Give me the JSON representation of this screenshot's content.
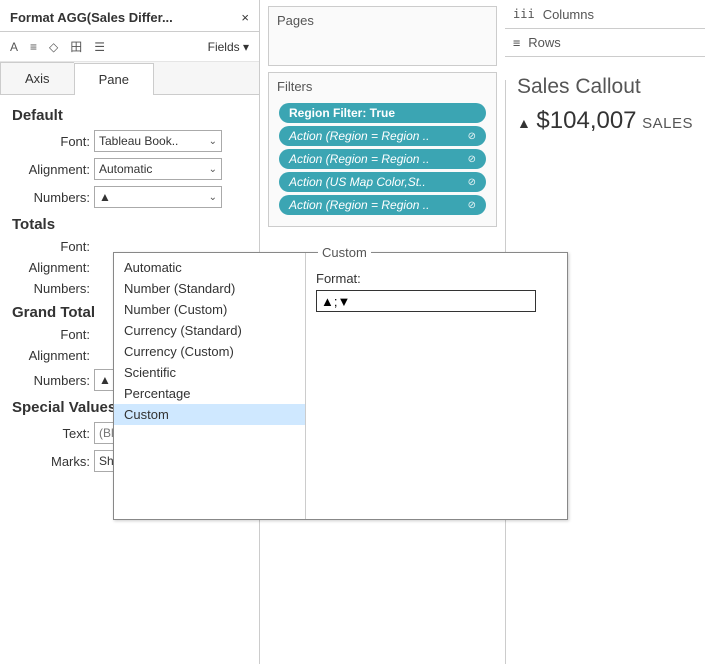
{
  "panel": {
    "title": "Format AGG(Sales Differ...",
    "fields_label": "Fields",
    "tabs": {
      "axis": "Axis",
      "pane": "Pane"
    }
  },
  "sections": {
    "default": {
      "title": "Default",
      "font_label": "Font:",
      "font_value": "Tableau Book..",
      "align_label": "Alignment:",
      "align_value": "Automatic",
      "numbers_label": "Numbers:",
      "numbers_value": "▲"
    },
    "totals": {
      "title": "Totals",
      "font_label": "Font:",
      "align_label": "Alignment:",
      "numbers_label": "Numbers:"
    },
    "grand": {
      "title": "Grand Total",
      "font_label": "Font:",
      "align_label": "Alignment:",
      "numbers_label": "Numbers:",
      "numbers_value": "▲"
    },
    "special": {
      "title": "Special Values (eg. NULL)",
      "text_label": "Text:",
      "text_placeholder": "(Blank)",
      "marks_label": "Marks:",
      "marks_value": "Show at Indic..."
    }
  },
  "shelves": {
    "pages": "Pages",
    "filters": "Filters",
    "columns": "Columns",
    "rows": "Rows"
  },
  "filter_pills": [
    {
      "label": "Region Filter: True",
      "region": true
    },
    {
      "label": "Action (Region = Region ..",
      "icon": true
    },
    {
      "label": "Action (Region = Region ..",
      "icon": true
    },
    {
      "label": "Action (US Map Color,St..",
      "icon": true
    },
    {
      "label": "Action (Region = Region ..",
      "icon": true
    }
  ],
  "marks_pill": "AGG(Sales Difference)",
  "viz": {
    "title": "Sales Callout",
    "triangle": "▲",
    "amount": "$104,007",
    "label": "SALES"
  },
  "popup": {
    "options": [
      "Automatic",
      "Number (Standard)",
      "Number (Custom)",
      "Currency (Standard)",
      "Currency (Custom)",
      "Scientific",
      "Percentage",
      "Custom"
    ],
    "selected": "Custom",
    "legend": "Custom",
    "format_label": "Format:",
    "format_value": "▲;▼"
  },
  "icons": {
    "shelf_cols": "iii",
    "shelf_rows": "≡"
  }
}
